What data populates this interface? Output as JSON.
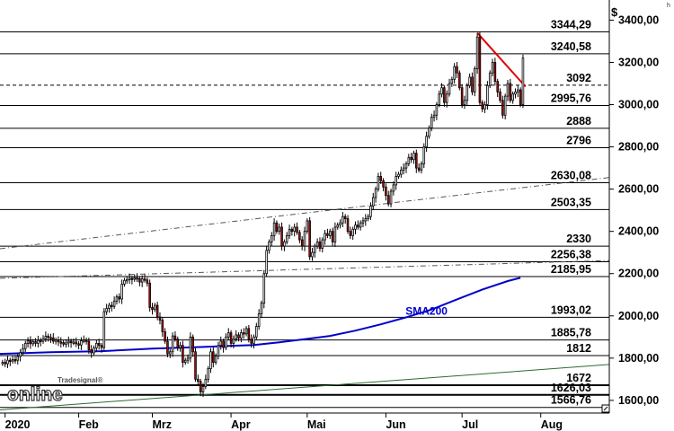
{
  "chart_data": {
    "type": "candlestick",
    "unit_label": "$",
    "corner_mark": "h",
    "brand": {
      "small": "Tradesignal®",
      "big": "online"
    },
    "y_ticks": [
      "3400,00",
      "3200,00",
      "3000,00",
      "2800,00",
      "2600,00",
      "2400,00",
      "2200,00",
      "2000,00",
      "1800,00",
      "1600,00"
    ],
    "y_tick_values": [
      3400,
      3200,
      3000,
      2800,
      2600,
      2400,
      2200,
      2000,
      1800,
      1600
    ],
    "ylim": [
      1540,
      3440
    ],
    "x_labels": [
      {
        "label": "2020",
        "day": 2
      },
      {
        "label": "Feb",
        "day": 31
      },
      {
        "label": "Mrz",
        "day": 60
      },
      {
        "label": "Apr",
        "day": 91
      },
      {
        "label": "Mai",
        "day": 121
      },
      {
        "label": "Jun",
        "day": 152
      },
      {
        "label": "Jul",
        "day": 182
      },
      {
        "label": "Aug",
        "day": 213
      }
    ],
    "xlim": [
      0,
      240
    ],
    "levels": [
      {
        "label": "3344,29",
        "value": 3344.29,
        "style": "solid"
      },
      {
        "label": "3240,58",
        "value": 3240.58,
        "style": "solid"
      },
      {
        "label": "3092",
        "value": 3092,
        "style": "dashed"
      },
      {
        "label": "2995,76",
        "value": 2995.76,
        "style": "solid"
      },
      {
        "label": "2888",
        "value": 2888,
        "style": "solid"
      },
      {
        "label": "2796",
        "value": 2796,
        "style": "solid"
      },
      {
        "label": "2630,08",
        "value": 2630.08,
        "style": "solid"
      },
      {
        "label": "2503,35",
        "value": 2503.35,
        "style": "solid"
      },
      {
        "label": "2330",
        "value": 2330,
        "style": "solid"
      },
      {
        "label": "2256,38",
        "value": 2256.38,
        "style": "solid"
      },
      {
        "label": "2185,95",
        "value": 2185.95,
        "style": "solid"
      },
      {
        "label": "1993,02",
        "value": 1993.02,
        "style": "solid"
      },
      {
        "label": "1885,78",
        "value": 1885.78,
        "style": "solid"
      },
      {
        "label": "1812",
        "value": 1812,
        "style": "solid"
      },
      {
        "label": "1672",
        "value": 1672,
        "style": "thick"
      },
      {
        "label": "1626,03",
        "value": 1626.03,
        "style": "thick"
      },
      {
        "label": "1566,76",
        "value": 1566.76,
        "style": "solid"
      }
    ],
    "trend_lines": [
      {
        "name": "upper-channel",
        "color": "#555555",
        "style": "dashdot",
        "x": [
          0,
          240
        ],
        "y": [
          2318,
          2655
        ]
      },
      {
        "name": "mid-channel",
        "color": "#555555",
        "style": "dashdot",
        "x": [
          0,
          240
        ],
        "y": [
          2178,
          2262
        ]
      },
      {
        "name": "long-term-trend",
        "color": "#2e6b2e",
        "style": "solid",
        "x": [
          0,
          240
        ],
        "y": [
          1555,
          1770
        ]
      },
      {
        "name": "resistance",
        "color": "#e00000",
        "style": "solid",
        "x": [
          188,
          207
        ],
        "y": [
          3340,
          3085
        ]
      }
    ],
    "sma": {
      "name": "SMA200",
      "color": "#0000cc",
      "points": [
        [
          0,
          1820
        ],
        [
          20,
          1828
        ],
        [
          40,
          1833
        ],
        [
          60,
          1845
        ],
        [
          80,
          1853
        ],
        [
          100,
          1862
        ],
        [
          110,
          1875
        ],
        [
          120,
          1890
        ],
        [
          130,
          1905
        ],
        [
          140,
          1930
        ],
        [
          150,
          1960
        ],
        [
          160,
          1993
        ],
        [
          170,
          2030
        ],
        [
          180,
          2078
        ],
        [
          190,
          2125
        ],
        [
          200,
          2165
        ],
        [
          205,
          2180
        ]
      ]
    },
    "series": [
      {
        "name": "close",
        "values": [
          [
            1,
            1780
          ],
          [
            2,
            1773
          ],
          [
            3,
            1790
          ],
          [
            4,
            1786
          ],
          [
            5,
            1793
          ],
          [
            6,
            1790
          ],
          [
            7,
            1808
          ],
          [
            8,
            1826
          ],
          [
            9,
            1845
          ],
          [
            10,
            1870
          ],
          [
            11,
            1882
          ],
          [
            12,
            1868
          ],
          [
            13,
            1878
          ],
          [
            14,
            1870
          ],
          [
            15,
            1884
          ],
          [
            16,
            1880
          ],
          [
            17,
            1892
          ],
          [
            18,
            1904
          ],
          [
            19,
            1898
          ],
          [
            20,
            1896
          ],
          [
            21,
            1880
          ],
          [
            22,
            1886
          ],
          [
            23,
            1877
          ],
          [
            24,
            1874
          ],
          [
            25,
            1866
          ],
          [
            26,
            1872
          ],
          [
            27,
            1880
          ],
          [
            28,
            1873
          ],
          [
            29,
            1876
          ],
          [
            30,
            1868
          ],
          [
            31,
            1862
          ],
          [
            32,
            1882
          ],
          [
            33,
            1885
          ],
          [
            34,
            1880
          ],
          [
            35,
            1840
          ],
          [
            36,
            1825
          ],
          [
            37,
            1848
          ],
          [
            38,
            1870
          ],
          [
            39,
            1860
          ],
          [
            40,
            1850
          ],
          [
            41,
            2020
          ],
          [
            42,
            2035
          ],
          [
            43,
            2050
          ],
          [
            44,
            2045
          ],
          [
            45,
            2070
          ],
          [
            46,
            2090
          ],
          [
            47,
            2080
          ],
          [
            48,
            2150
          ],
          [
            49,
            2168
          ],
          [
            50,
            2172
          ],
          [
            51,
            2178
          ],
          [
            52,
            2173
          ],
          [
            53,
            2180
          ],
          [
            54,
            2176
          ],
          [
            55,
            2160
          ],
          [
            56,
            2175
          ],
          [
            57,
            2170
          ],
          [
            58,
            2155
          ],
          [
            59,
            2040
          ],
          [
            60,
            2030
          ],
          [
            61,
            2050
          ],
          [
            62,
            1995
          ],
          [
            63,
            1980
          ],
          [
            64,
            1925
          ],
          [
            65,
            1880
          ],
          [
            66,
            1820
          ],
          [
            67,
            1830
          ],
          [
            68,
            1905
          ],
          [
            69,
            1890
          ],
          [
            70,
            1850
          ],
          [
            71,
            1860
          ],
          [
            72,
            1780
          ],
          [
            73,
            1790
          ],
          [
            74,
            1800
          ],
          [
            75,
            1900
          ],
          [
            76,
            1830
          ],
          [
            77,
            1700
          ],
          [
            78,
            1690
          ],
          [
            79,
            1640
          ],
          [
            80,
            1665
          ],
          [
            81,
            1700
          ],
          [
            82,
            1750
          ],
          [
            83,
            1830
          ],
          [
            84,
            1780
          ],
          [
            85,
            1810
          ],
          [
            86,
            1860
          ],
          [
            87,
            1880
          ],
          [
            88,
            1850
          ],
          [
            89,
            1900
          ],
          [
            90,
            1920
          ],
          [
            91,
            1870
          ],
          [
            92,
            1890
          ],
          [
            93,
            1910
          ],
          [
            94,
            1895
          ],
          [
            95,
            1920
          ],
          [
            96,
            1915
          ],
          [
            97,
            1940
          ],
          [
            98,
            1890
          ],
          [
            99,
            1870
          ],
          [
            100,
            1900
          ],
          [
            101,
            1950
          ],
          [
            102,
            2010
          ],
          [
            103,
            2060
          ],
          [
            104,
            2200
          ],
          [
            105,
            2310
          ],
          [
            106,
            2350
          ],
          [
            107,
            2380
          ],
          [
            108,
            2440
          ],
          [
            109,
            2400
          ],
          [
            110,
            2420
          ],
          [
            111,
            2330
          ],
          [
            112,
            2350
          ],
          [
            113,
            2380
          ],
          [
            114,
            2410
          ],
          [
            115,
            2400
          ],
          [
            116,
            2420
          ],
          [
            117,
            2395
          ],
          [
            118,
            2360
          ],
          [
            119,
            2330
          ],
          [
            120,
            2400
          ],
          [
            121,
            2450
          ],
          [
            122,
            2280
          ],
          [
            123,
            2300
          ],
          [
            124,
            2330
          ],
          [
            125,
            2350
          ],
          [
            126,
            2320
          ],
          [
            127,
            2360
          ],
          [
            128,
            2390
          ],
          [
            129,
            2380
          ],
          [
            130,
            2400
          ],
          [
            131,
            2350
          ],
          [
            132,
            2420
          ],
          [
            133,
            2430
          ],
          [
            134,
            2440
          ],
          [
            135,
            2470
          ],
          [
            136,
            2460
          ],
          [
            137,
            2400
          ],
          [
            138,
            2380
          ],
          [
            139,
            2410
          ],
          [
            140,
            2430
          ],
          [
            141,
            2420
          ],
          [
            142,
            2440
          ],
          [
            143,
            2450
          ],
          [
            144,
            2460
          ],
          [
            145,
            2470
          ],
          [
            146,
            2520
          ],
          [
            147,
            2560
          ],
          [
            148,
            2600
          ],
          [
            149,
            2660
          ],
          [
            150,
            2640
          ],
          [
            151,
            2610
          ],
          [
            152,
            2570
          ],
          [
            153,
            2530
          ],
          [
            154,
            2590
          ],
          [
            155,
            2620
          ],
          [
            156,
            2660
          ],
          [
            157,
            2670
          ],
          [
            158,
            2690
          ],
          [
            159,
            2700
          ],
          [
            160,
            2720
          ],
          [
            161,
            2750
          ],
          [
            162,
            2740
          ],
          [
            163,
            2770
          ],
          [
            164,
            2700
          ],
          [
            165,
            2690
          ],
          [
            166,
            2720
          ],
          [
            167,
            2800
          ],
          [
            168,
            2850
          ],
          [
            169,
            2890
          ],
          [
            170,
            2940
          ],
          [
            171,
            2950
          ],
          [
            172,
            3000
          ],
          [
            173,
            3050
          ],
          [
            174,
            3080
          ],
          [
            175,
            3010
          ],
          [
            176,
            3050
          ],
          [
            177,
            3100
          ],
          [
            178,
            3120
          ],
          [
            179,
            3180
          ],
          [
            180,
            3150
          ],
          [
            181,
            3080
          ],
          [
            182,
            3000
          ],
          [
            183,
            3020
          ],
          [
            184,
            3090
          ],
          [
            185,
            3130
          ],
          [
            186,
            3060
          ],
          [
            187,
            3170
          ],
          [
            188,
            3320
          ],
          [
            189,
            3010
          ],
          [
            190,
            2980
          ],
          [
            191,
            3000
          ],
          [
            192,
            3090
          ],
          [
            193,
            3150
          ],
          [
            194,
            3200
          ],
          [
            195,
            3110
          ],
          [
            196,
            3060
          ],
          [
            197,
            3020
          ],
          [
            198,
            2950
          ],
          [
            199,
            3040
          ],
          [
            200,
            3100
          ],
          [
            201,
            3020
          ],
          [
            202,
            3050
          ],
          [
            203,
            3060
          ],
          [
            204,
            3070
          ],
          [
            205,
            3000
          ],
          [
            206,
            3220
          ]
        ]
      }
    ],
    "annotations": [
      {
        "text": "SMA200",
        "x": 168,
        "y": 2005
      }
    ]
  }
}
